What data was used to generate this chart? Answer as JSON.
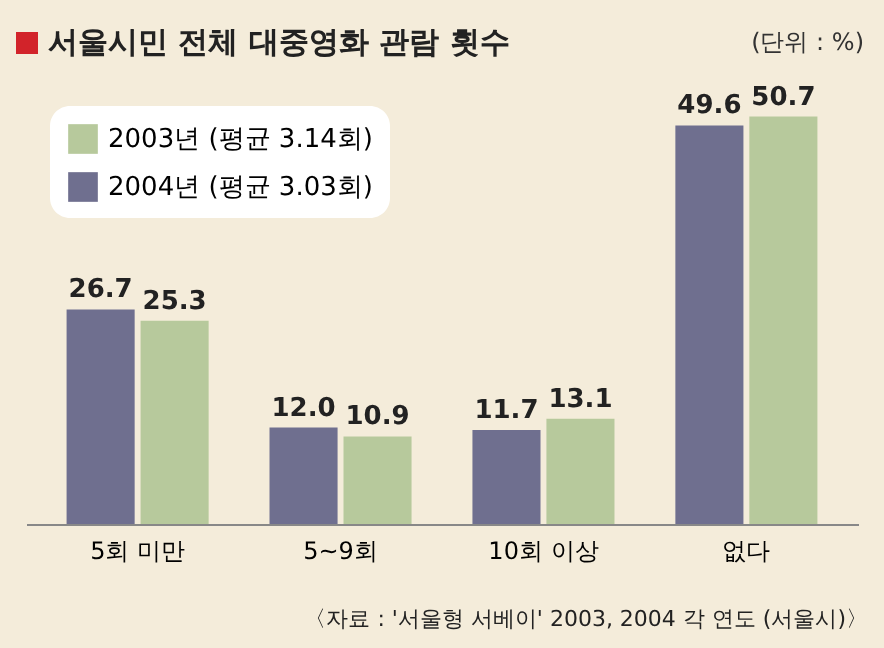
{
  "chart_data": {
    "type": "bar",
    "title": "서울시민 전체 대중영화 관람 횟수",
    "subtitle": "(단위 : %)",
    "categories": [
      "5회 미만",
      "5~9회",
      "10회 이상",
      "없다"
    ],
    "series": [
      {
        "name": "2003년 (평균 3.14회)",
        "color": "#b7c99c",
        "values": [
          25.3,
          10.9,
          13.1,
          50.7
        ],
        "value_labels": [
          "25.3",
          "10.9",
          "13.1",
          "50.7"
        ]
      },
      {
        "name": "2004년 (평균 3.03회)",
        "color": "#6f6f8f",
        "values": [
          26.7,
          12.0,
          11.7,
          49.6
        ],
        "value_labels": [
          "26.7",
          "12.0",
          "11.7",
          "49.6"
        ]
      }
    ],
    "legend": "top left",
    "annotations": [
      "〈자료 : '서울형 서베이' 2003, 2004 각 연도 (서울시)〉"
    ]
  }
}
